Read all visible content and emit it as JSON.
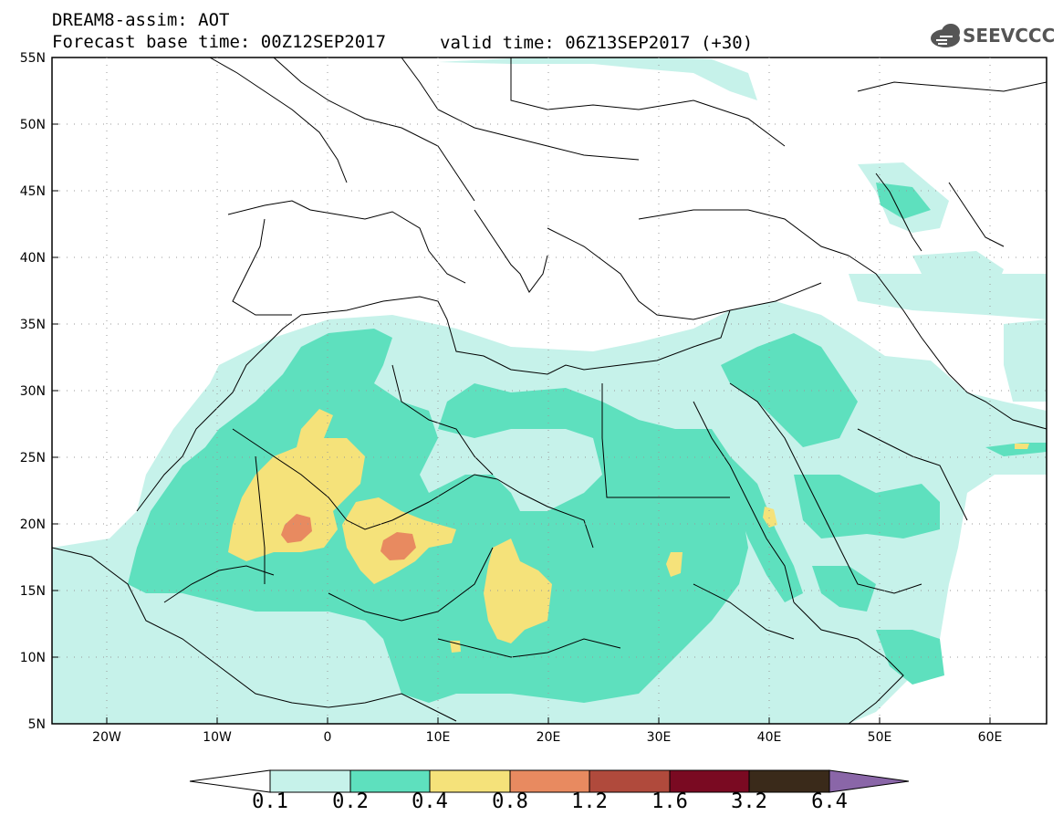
{
  "header": {
    "line1": "DREAM8-assim: AOT",
    "line2": "Forecast base time: 00Z12SEP2017",
    "valid": "valid time: 06Z13SEP2017 (+30)"
  },
  "logo": {
    "text": "SEEVCCC",
    "icon": "cloud-icon"
  },
  "map": {
    "lat_labels": [
      "55N",
      "50N",
      "45N",
      "40N",
      "35N",
      "30N",
      "25N",
      "20N",
      "15N",
      "10N",
      "5N"
    ],
    "lon_labels": [
      "20W",
      "10W",
      "0",
      "10E",
      "20E",
      "30E",
      "40E",
      "50E",
      "60E"
    ]
  },
  "colorbar": {
    "labels": [
      "0.1",
      "0.2",
      "0.4",
      "0.8",
      "1.2",
      "1.6",
      "3.2",
      "6.4"
    ],
    "colors": [
      "#c6f2ea",
      "#5ee0be",
      "#f5e27a",
      "#e88a60",
      "#b04a3c",
      "#7a0a22",
      "#3a2a1a",
      "#8a66a8"
    ]
  }
}
